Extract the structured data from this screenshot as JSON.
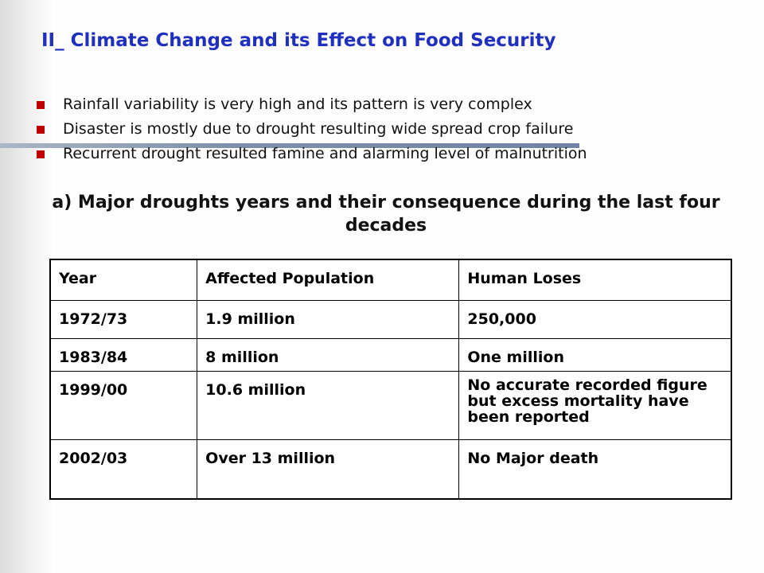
{
  "slide": {
    "title": "II_ Climate Change and its Effect on Food Security",
    "bullets": [
      "Rainfall variability is very high and its pattern is very complex",
      "Disaster is mostly due to drought resulting wide spread crop failure",
      "Recurrent drought resulted famine and alarming level of malnutrition"
    ],
    "subheading": "a) Major droughts years and their consequence during the last four decades",
    "colors": {
      "title": "#1f2fbf",
      "bullet_marker": "#c00000",
      "accent_line": "#7d8fab"
    }
  },
  "table": {
    "headers": [
      "Year",
      "Affected Population",
      "Human Loses"
    ],
    "rows": [
      [
        "1972/73",
        "1.9 million",
        "250,000"
      ],
      [
        "1983/84",
        "8 million",
        "One million"
      ],
      [
        "1999/00",
        "10.6 million",
        "No accurate recorded figure but excess mortality have been reported"
      ],
      [
        "2002/03",
        "Over 13 million",
        "No Major death"
      ]
    ]
  }
}
